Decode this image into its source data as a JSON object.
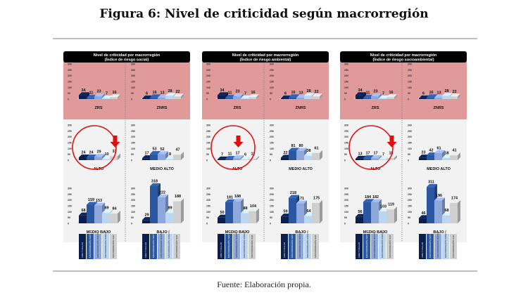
{
  "figure": {
    "title": "Figura 6: Nivel de criticidad según macrorregión",
    "source": "Fuente: Elaboración propia."
  },
  "colors": {
    "series": [
      "#0b1f4f",
      "#2b56a0",
      "#8ea8dc",
      "#bcd5f0",
      "#cfcfcf"
    ],
    "critical_zone_bg": "#e09a9a",
    "other_zone_bg": "#f2f2f2",
    "header_bg": "#000000",
    "highlight": "#e01010"
  },
  "chart_data": [
    {
      "type": "bar",
      "title": "Nivel de criticidad por macrorregión",
      "subtitle": "(Índice de riesgo social)",
      "categories": [
        "ZRS",
        "ZNRS",
        "ALTO",
        "MEDIO ALTO",
        "MEDIO BAJO",
        "BAJO"
      ],
      "series": [
        {
          "name": "LIMA Y CALLAO",
          "values": [
            34,
            6,
            24,
            17,
            68,
            29
          ]
        },
        {
          "name": "MACRORREGIÓN CENTRO",
          "values": [
            11,
            16,
            24,
            53,
            159,
            318
          ]
        },
        {
          "name": "MACRORREGIÓN NORTE",
          "values": [
            23,
            13,
            29,
            52,
            153,
            222
          ]
        },
        {
          "name": "MACRORREGIÓN ORIENTE",
          "values": [
            7,
            28,
            10,
            8,
            89,
            89
          ]
        },
        {
          "name": "MACRORREGIÓN SUR",
          "values": [
            16,
            22,
            33,
            47,
            84,
            188
          ]
        }
      ],
      "ylim": [
        0,
        300
      ],
      "yticks": [
        0,
        50,
        100,
        150,
        200,
        250,
        300
      ],
      "highlight": {
        "category": "ALTO",
        "series": "MACRORREGIÓN SUR"
      }
    },
    {
      "type": "bar",
      "title": "Nivel de criticidad por macrorregión",
      "subtitle": "(Índice de riesgo ambiental)",
      "categories": [
        "ZRS",
        "ZNRS",
        "ALTO",
        "MEDIO ALTO",
        "MEDIO BAJO",
        "BAJO"
      ],
      "series": [
        {
          "name": "LIMA Y CALLAO",
          "values": [
            34,
            6,
            7,
            22,
            50,
            59
          ]
        },
        {
          "name": "MACRORREGIÓN CENTRO",
          "values": [
            11,
            16,
            11,
            81,
            181,
            218
          ]
        },
        {
          "name": "MACRORREGIÓN NORTE",
          "values": [
            23,
            13,
            17,
            80,
            188,
            171
          ]
        },
        {
          "name": "MACRORREGIÓN ORIENTE",
          "values": [
            7,
            28,
            6,
            38,
            88,
            64
          ]
        },
        {
          "name": "MACRORREGIÓN SUR",
          "values": [
            16,
            22,
            12,
            61,
            104,
            175
          ]
        }
      ],
      "ylim": [
        0,
        300
      ],
      "yticks": [
        0,
        50,
        100,
        150,
        200,
        250,
        300
      ],
      "highlight": {
        "category": "ALTO",
        "series": "MACRORREGIÓN NORTE"
      }
    },
    {
      "type": "bar",
      "title": "Nivel de criticidad por macrorregión",
      "subtitle": "(Índice de riesgo socioambiental)",
      "categories": [
        "ZRS",
        "ZNRS",
        "ALTO",
        "MEDIO ALTO",
        "MEDIO BAJO",
        "BAJO"
      ],
      "series": [
        {
          "name": "LIMA Y CALLAO",
          "values": [
            34,
            6,
            13,
            23,
            56,
            46
          ]
        },
        {
          "name": "MACRORREGIÓN CENTRO",
          "values": [
            11,
            16,
            17,
            42,
            184,
            311
          ]
        },
        {
          "name": "MACRORREGIÓN NORTE",
          "values": [
            23,
            13,
            17,
            61,
            182,
            196
          ]
        },
        {
          "name": "MACRORREGIÓN ORIENTE",
          "values": [
            7,
            28,
            7,
            18,
            103,
            68
          ]
        },
        {
          "name": "MACRORREGIÓN SUR",
          "values": [
            16,
            22,
            18,
            41,
            119,
            174
          ]
        }
      ],
      "ylim": [
        0,
        300
      ],
      "yticks": [
        0,
        50,
        100,
        150,
        200,
        250,
        300
      ],
      "highlight": {
        "category": "ALTO",
        "series": "MACRORREGIÓN SUR"
      }
    }
  ]
}
